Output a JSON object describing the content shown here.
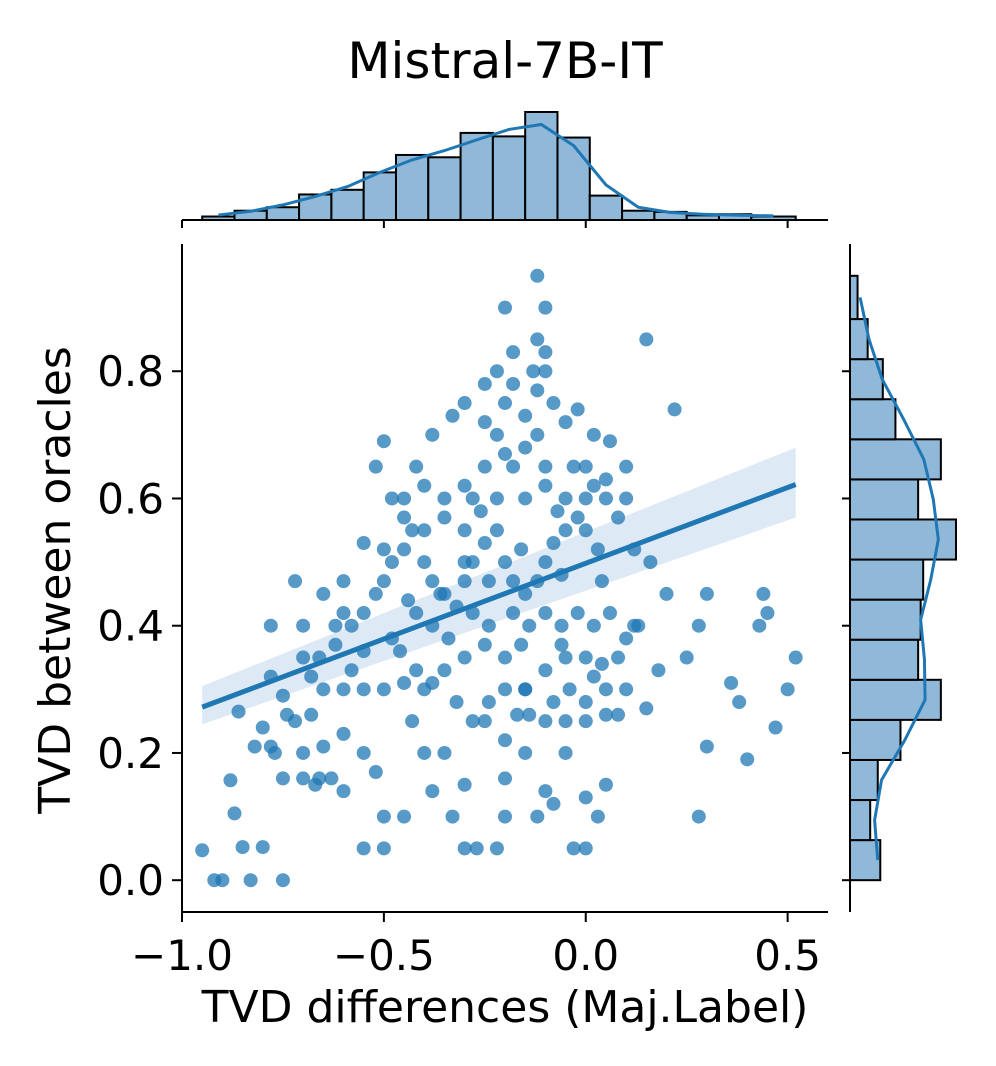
{
  "chart_data": {
    "type": "scatter",
    "title": "Mistral-7B-IT",
    "xlabel": "TVD differences (Maj.Label)",
    "ylabel": "TVD between oracles",
    "xlim": [
      -1.0,
      0.6
    ],
    "ylim": [
      -0.05,
      1.0
    ],
    "x_ticks": [
      {
        "value": -1.0,
        "label": "−1.0"
      },
      {
        "value": -0.5,
        "label": "−0.5"
      },
      {
        "value": 0.0,
        "label": "0.0"
      },
      {
        "value": 0.5,
        "label": "0.5"
      }
    ],
    "y_ticks": [
      {
        "value": 0.0,
        "label": "0.0"
      },
      {
        "value": 0.2,
        "label": "0.2"
      },
      {
        "value": 0.4,
        "label": "0.4"
      },
      {
        "value": 0.6,
        "label": "0.6"
      },
      {
        "value": 0.8,
        "label": "0.8"
      }
    ],
    "grid": false,
    "colors": {
      "points": "#1f77b4",
      "hist_fill": "#8fb8d9",
      "hist_edge": "#000000",
      "band": "#c6dbef"
    },
    "regression": {
      "x_start": -0.95,
      "y_start": 0.272,
      "x_end": 0.52,
      "y_end": 0.622,
      "ci_low_start": 0.245,
      "ci_high_start": 0.305,
      "ci_low_end": 0.57,
      "ci_high_end": 0.68
    },
    "points": [
      [
        -0.95,
        0.047
      ],
      [
        -0.92,
        0.0
      ],
      [
        -0.9,
        0.0
      ],
      [
        -0.83,
        0.0
      ],
      [
        -0.75,
        0.0
      ],
      [
        -0.87,
        0.105
      ],
      [
        -0.85,
        0.052
      ],
      [
        -0.8,
        0.052
      ],
      [
        -0.88,
        0.157
      ],
      [
        -0.82,
        0.21
      ],
      [
        -0.78,
        0.21
      ],
      [
        -0.75,
        0.16
      ],
      [
        -0.7,
        0.16
      ],
      [
        -0.66,
        0.16
      ],
      [
        -0.63,
        0.16
      ],
      [
        -0.6,
        0.14
      ],
      [
        -0.65,
        0.21
      ],
      [
        -0.72,
        0.25
      ],
      [
        -0.68,
        0.26
      ],
      [
        -0.8,
        0.24
      ],
      [
        -0.86,
        0.265
      ],
      [
        -0.78,
        0.32
      ],
      [
        -0.7,
        0.35
      ],
      [
        -0.65,
        0.3
      ],
      [
        -0.6,
        0.3
      ],
      [
        -0.6,
        0.23
      ],
      [
        -0.55,
        0.2
      ],
      [
        -0.52,
        0.17
      ],
      [
        -0.5,
        0.05
      ],
      [
        -0.55,
        0.05
      ],
      [
        -0.5,
        0.1
      ],
      [
        -0.45,
        0.1
      ],
      [
        -0.43,
        0.25
      ],
      [
        -0.4,
        0.2
      ],
      [
        -0.38,
        0.14
      ],
      [
        -0.33,
        0.1
      ],
      [
        -0.3,
        0.05
      ],
      [
        -0.27,
        0.05
      ],
      [
        -0.22,
        0.05
      ],
      [
        -0.2,
        0.1
      ],
      [
        -0.15,
        0.2
      ],
      [
        -0.12,
        0.1
      ],
      [
        -0.1,
        0.14
      ],
      [
        -0.08,
        0.12
      ],
      [
        -0.05,
        0.2
      ],
      [
        -0.03,
        0.05
      ],
      [
        0.0,
        0.05
      ],
      [
        0.03,
        0.1
      ],
      [
        0.0,
        0.13
      ],
      [
        0.05,
        0.15
      ],
      [
        -0.2,
        0.16
      ],
      [
        -0.3,
        0.15
      ],
      [
        -0.35,
        0.2
      ],
      [
        -0.25,
        0.25
      ],
      [
        -0.2,
        0.3
      ],
      [
        -0.15,
        0.3
      ],
      [
        -0.1,
        0.25
      ],
      [
        -0.05,
        0.25
      ],
      [
        0.0,
        0.25
      ],
      [
        0.05,
        0.26
      ],
      [
        0.08,
        0.26
      ],
      [
        0.15,
        0.27
      ],
      [
        0.28,
        0.1
      ],
      [
        0.3,
        0.21
      ],
      [
        0.47,
        0.24
      ],
      [
        0.4,
        0.19
      ],
      [
        0.38,
        0.28
      ],
      [
        0.36,
        0.31
      ],
      [
        0.52,
        0.35
      ],
      [
        0.5,
        0.3
      ],
      [
        0.43,
        0.4
      ],
      [
        0.45,
        0.42
      ],
      [
        0.44,
        0.45
      ],
      [
        0.3,
        0.45
      ],
      [
        0.28,
        0.4
      ],
      [
        0.25,
        0.35
      ],
      [
        0.2,
        0.45
      ],
      [
        0.16,
        0.5
      ],
      [
        0.12,
        0.4
      ],
      [
        0.1,
        0.38
      ],
      [
        0.08,
        0.35
      ],
      [
        0.05,
        0.3
      ],
      [
        0.0,
        0.35
      ],
      [
        -0.05,
        0.35
      ],
      [
        -0.1,
        0.33
      ],
      [
        -0.15,
        0.3
      ],
      [
        -0.2,
        0.35
      ],
      [
        -0.25,
        0.37
      ],
      [
        -0.3,
        0.35
      ],
      [
        -0.35,
        0.33
      ],
      [
        -0.4,
        0.3
      ],
      [
        -0.45,
        0.31
      ],
      [
        -0.5,
        0.3
      ],
      [
        -0.55,
        0.3
      ],
      [
        -0.58,
        0.33
      ],
      [
        -0.62,
        0.37
      ],
      [
        -0.66,
        0.35
      ],
      [
        -0.58,
        0.4
      ],
      [
        -0.55,
        0.42
      ],
      [
        -0.52,
        0.45
      ],
      [
        -0.5,
        0.47
      ],
      [
        -0.48,
        0.5
      ],
      [
        -0.45,
        0.52
      ],
      [
        -0.43,
        0.55
      ],
      [
        -0.4,
        0.5
      ],
      [
        -0.38,
        0.47
      ],
      [
        -0.35,
        0.45
      ],
      [
        -0.32,
        0.43
      ],
      [
        -0.3,
        0.47
      ],
      [
        -0.28,
        0.5
      ],
      [
        -0.25,
        0.53
      ],
      [
        -0.22,
        0.55
      ],
      [
        -0.2,
        0.5
      ],
      [
        -0.18,
        0.47
      ],
      [
        -0.15,
        0.45
      ],
      [
        -0.12,
        0.47
      ],
      [
        -0.1,
        0.5
      ],
      [
        -0.08,
        0.53
      ],
      [
        -0.05,
        0.55
      ],
      [
        -0.02,
        0.57
      ],
      [
        0.0,
        0.6
      ],
      [
        0.02,
        0.62
      ],
      [
        0.05,
        0.6
      ],
      [
        0.08,
        0.57
      ],
      [
        -0.48,
        0.6
      ],
      [
        -0.45,
        0.6
      ],
      [
        -0.42,
        0.65
      ],
      [
        -0.4,
        0.62
      ],
      [
        -0.35,
        0.6
      ],
      [
        -0.3,
        0.62
      ],
      [
        -0.28,
        0.6
      ],
      [
        -0.25,
        0.65
      ],
      [
        -0.22,
        0.7
      ],
      [
        -0.2,
        0.67
      ],
      [
        -0.18,
        0.65
      ],
      [
        -0.15,
        0.68
      ],
      [
        -0.12,
        0.7
      ],
      [
        -0.1,
        0.65
      ],
      [
        -0.05,
        0.6
      ],
      [
        -0.03,
        0.65
      ],
      [
        0.0,
        0.65
      ],
      [
        0.05,
        0.63
      ],
      [
        0.1,
        0.6
      ],
      [
        -0.38,
        0.7
      ],
      [
        -0.33,
        0.73
      ],
      [
        -0.3,
        0.75
      ],
      [
        -0.25,
        0.72
      ],
      [
        -0.2,
        0.75
      ],
      [
        -0.18,
        0.78
      ],
      [
        -0.15,
        0.73
      ],
      [
        -0.12,
        0.77
      ],
      [
        -0.1,
        0.8
      ],
      [
        -0.08,
        0.75
      ],
      [
        -0.05,
        0.72
      ],
      [
        -0.02,
        0.74
      ],
      [
        0.02,
        0.7
      ],
      [
        -0.22,
        0.8
      ],
      [
        -0.18,
        0.83
      ],
      [
        -0.13,
        0.8
      ],
      [
        -0.1,
        0.83
      ],
      [
        -0.12,
        0.85
      ],
      [
        -0.2,
        0.9
      ],
      [
        -0.1,
        0.9
      ],
      [
        -0.12,
        0.95
      ],
      [
        -0.25,
        0.78
      ],
      [
        0.15,
        0.85
      ],
      [
        0.22,
        0.74
      ],
      [
        0.1,
        0.65
      ],
      [
        0.06,
        0.69
      ],
      [
        -0.5,
        0.69
      ],
      [
        -0.52,
        0.65
      ],
      [
        -0.55,
        0.53
      ],
      [
        -0.6,
        0.42
      ],
      [
        -0.62,
        0.4
      ],
      [
        -0.7,
        0.4
      ],
      [
        -0.65,
        0.45
      ],
      [
        -0.6,
        0.47
      ],
      [
        -0.78,
        0.4
      ],
      [
        -0.72,
        0.47
      ],
      [
        -0.68,
        0.32
      ],
      [
        -0.75,
        0.29
      ],
      [
        -0.74,
        0.26
      ],
      [
        -0.7,
        0.2
      ],
      [
        -0.77,
        0.2
      ],
      [
        -0.67,
        0.15
      ],
      [
        -0.5,
        0.52
      ],
      [
        -0.45,
        0.57
      ],
      [
        -0.4,
        0.55
      ],
      [
        -0.35,
        0.57
      ],
      [
        -0.3,
        0.55
      ],
      [
        -0.26,
        0.58
      ],
      [
        -0.22,
        0.6
      ],
      [
        -0.15,
        0.6
      ],
      [
        -0.1,
        0.62
      ],
      [
        -0.07,
        0.58
      ],
      [
        0.0,
        0.55
      ],
      [
        0.03,
        0.52
      ],
      [
        -0.28,
        0.42
      ],
      [
        -0.24,
        0.4
      ],
      [
        -0.18,
        0.42
      ],
      [
        -0.14,
        0.4
      ],
      [
        -0.1,
        0.42
      ],
      [
        -0.06,
        0.4
      ],
      [
        -0.02,
        0.42
      ],
      [
        0.02,
        0.4
      ],
      [
        0.06,
        0.42
      ],
      [
        -0.42,
        0.42
      ],
      [
        -0.38,
        0.4
      ],
      [
        -0.34,
        0.38
      ],
      [
        -0.16,
        0.37
      ],
      [
        -0.06,
        0.37
      ],
      [
        0.04,
        0.34
      ],
      [
        0.1,
        0.3
      ],
      [
        0.13,
        0.4
      ],
      [
        0.18,
        0.33
      ],
      [
        -0.46,
        0.36
      ],
      [
        -0.42,
        0.33
      ],
      [
        -0.38,
        0.31
      ],
      [
        -0.32,
        0.28
      ],
      [
        -0.28,
        0.25
      ],
      [
        -0.24,
        0.28
      ],
      [
        -0.2,
        0.22
      ],
      [
        -0.17,
        0.26
      ],
      [
        -0.14,
        0.26
      ],
      [
        -0.08,
        0.28
      ],
      [
        -0.04,
        0.3
      ],
      [
        0.0,
        0.28
      ],
      [
        0.02,
        0.32
      ],
      [
        -0.55,
        0.36
      ],
      [
        -0.48,
        0.38
      ],
      [
        -0.44,
        0.44
      ],
      [
        -0.36,
        0.45
      ],
      [
        -0.3,
        0.5
      ],
      [
        -0.24,
        0.47
      ],
      [
        -0.16,
        0.52
      ],
      [
        -0.06,
        0.48
      ],
      [
        0.04,
        0.47
      ],
      [
        0.12,
        0.52
      ]
    ],
    "hist_x": {
      "edges": [
        -0.95,
        -0.87,
        -0.79,
        -0.71,
        -0.63,
        -0.55,
        -0.47,
        -0.39,
        -0.31,
        -0.23,
        -0.15,
        -0.07,
        0.01,
        0.09,
        0.17,
        0.25,
        0.33,
        0.41,
        0.52
      ],
      "counts": [
        3,
        8,
        11,
        22,
        26,
        41,
        56,
        54,
        75,
        72,
        93,
        71,
        21,
        8,
        7,
        4,
        5,
        3
      ]
    },
    "hist_y": {
      "edges": [
        0.0,
        0.063,
        0.126,
        0.189,
        0.252,
        0.315,
        0.378,
        0.441,
        0.504,
        0.567,
        0.63,
        0.693,
        0.756,
        0.819,
        0.882,
        0.95
      ],
      "counts": [
        12,
        8,
        11,
        20,
        36,
        27,
        28,
        29,
        42,
        27,
        36,
        18,
        13,
        7,
        3
      ]
    }
  }
}
